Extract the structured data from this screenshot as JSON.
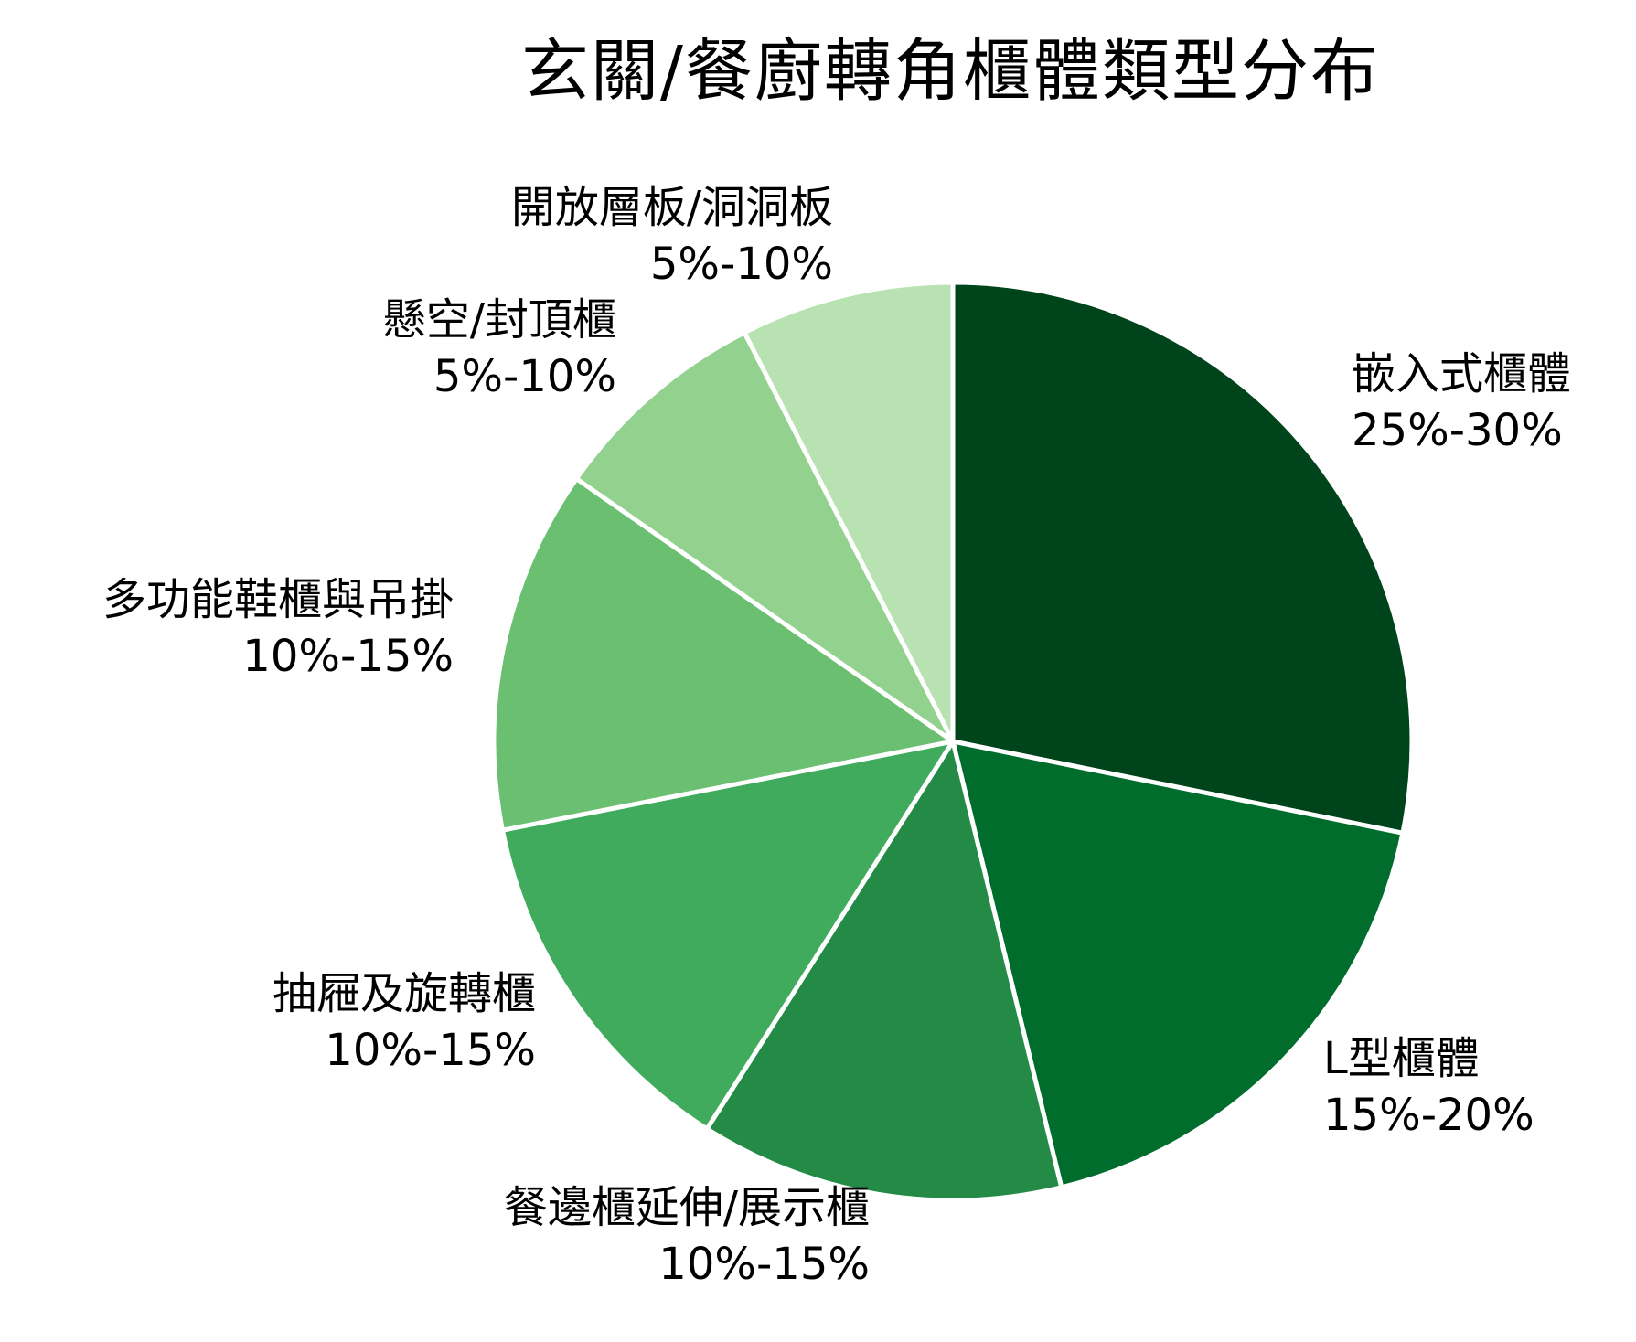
{
  "title": "玄關/餐廚轉角櫃體類型分布",
  "chart_data": {
    "type": "pie",
    "title": "玄關/餐廚轉角櫃體類型分布",
    "start_angle": "top (12 o'clock), clockwise",
    "center": [
      1042,
      811
    ],
    "radius": 502,
    "slices": [
      {
        "name": "嵌入式櫃體",
        "range": "25%-30%",
        "value": 28.2,
        "color": "#00441b"
      },
      {
        "name": "L型櫃體",
        "range": "15%-20%",
        "value": 18.0,
        "color": "#006d2c"
      },
      {
        "name": "餐邊櫃延伸/展示櫃",
        "range": "10%-15%",
        "value": 12.8,
        "color": "#238b45"
      },
      {
        "name": "抽屜及旋轉櫃",
        "range": "10%-15%",
        "value": 12.9,
        "color": "#41ab5d"
      },
      {
        "name": "多功能鞋櫃與吊掛",
        "range": "10%-15%",
        "value": 12.8,
        "color": "#6abf71"
      },
      {
        "name": "懸空/封頂櫃",
        "range": "5%-10%",
        "value": 7.8,
        "color": "#93d18f"
      },
      {
        "name": "開放層板/洞洞板",
        "range": "5%-10%",
        "value": 7.5,
        "color": "#b8e2b1"
      }
    ],
    "legend": "none (labels placed beside slices)"
  },
  "labels": [
    {
      "name": "嵌入式櫃體",
      "range": "25%-30%"
    },
    {
      "name": "L型櫃體",
      "range": "15%-20%"
    },
    {
      "name": "餐邊櫃延伸/展示櫃",
      "range": "10%-15%"
    },
    {
      "name": "抽屜及旋轉櫃",
      "range": "10%-15%"
    },
    {
      "name": "多功能鞋櫃與吊掛",
      "range": "10%-15%"
    },
    {
      "name": "懸空/封頂櫃",
      "range": "5%-10%"
    },
    {
      "name": "開放層板/洞洞板",
      "range": "5%-10%"
    }
  ]
}
